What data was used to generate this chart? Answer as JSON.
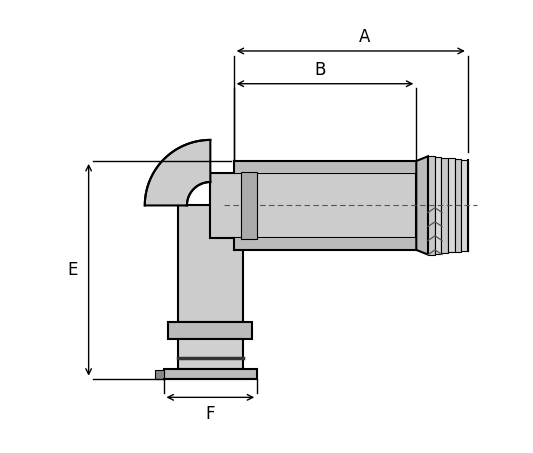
{
  "bg_color": "#ffffff",
  "line_color": "#000000",
  "fitting_fill": "#cccccc",
  "fitting_fill_light": "#e8e8e8",
  "fitting_fill_dark": "#b0b0b0",
  "shadow_color": "#a0a0a0",
  "dim_color": "#000000",
  "labels": [
    "A",
    "B",
    "E",
    "F"
  ],
  "title": "",
  "fig_width": 5.33,
  "fig_height": 4.53,
  "dpi": 100
}
